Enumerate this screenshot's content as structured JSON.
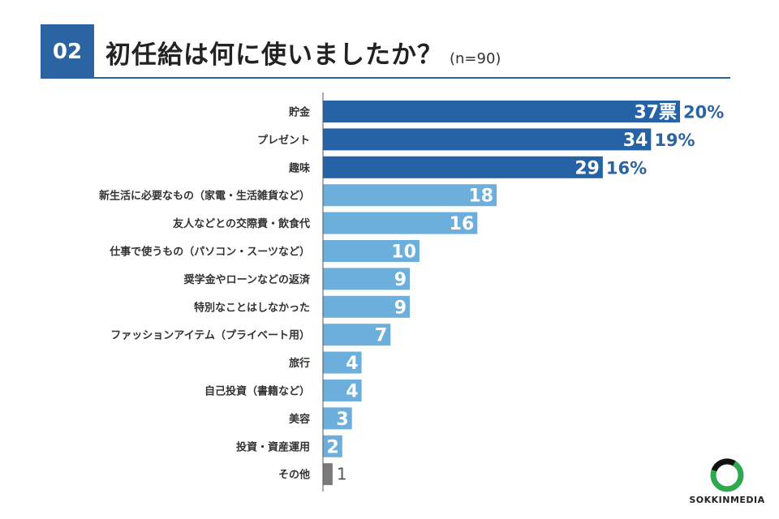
{
  "header": {
    "number": "02",
    "title": "初任給は何に使いましたか？",
    "subtitle": "(n=90)"
  },
  "colors": {
    "dark": "#2563a6",
    "light": "#6caedc",
    "gray": "#7a7a7a"
  },
  "chart_data": {
    "type": "bar",
    "orientation": "horizontal",
    "title": "初任給は何に使いましたか？",
    "n": 90,
    "categories": [
      "貯金",
      "プレゼント",
      "趣味",
      "新生活に必要なもの（家電・生活雑貨など）",
      "友人などとの交際費・飲食代",
      "仕事で使うもの（パソコン・スーツなど）",
      "奨学金やローンなどの返済",
      "特別なことはしなかった",
      "ファッションアイテム（プライベート用）",
      "旅行",
      "自己投資（書籍など）",
      "美容",
      "投資・資産運用",
      "その他"
    ],
    "values": [
      37,
      34,
      29,
      18,
      16,
      10,
      9,
      9,
      7,
      4,
      4,
      3,
      2,
      1
    ],
    "value_labels": [
      "37票",
      "34",
      "29",
      "18",
      "16",
      "10",
      "9",
      "9",
      "7",
      "4",
      "4",
      "3",
      "2",
      "1"
    ],
    "percent_labels": [
      "20%",
      "19%",
      "16%",
      "",
      "",
      "",
      "",
      "",
      "",
      "",
      "",
      "",
      "",
      ""
    ],
    "color_groups": [
      "dark",
      "dark",
      "dark",
      "light",
      "light",
      "light",
      "light",
      "light",
      "light",
      "light",
      "light",
      "light",
      "light",
      "gray"
    ],
    "xlim": [
      0,
      37
    ]
  },
  "logo": {
    "text": "SOKKINMEDIA"
  }
}
